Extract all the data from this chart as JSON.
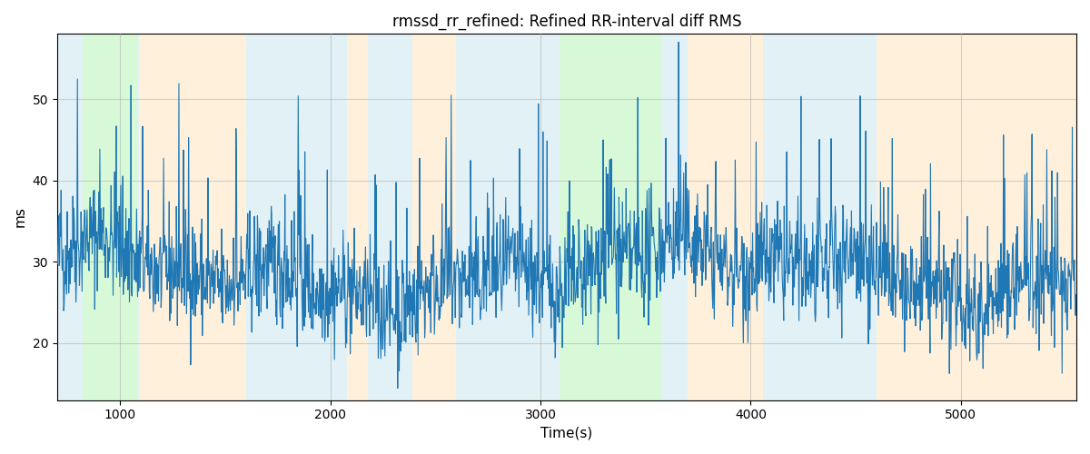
{
  "title": "rmssd_rr_refined: Refined RR-interval diff RMS",
  "xlabel": "Time(s)",
  "ylabel": "ms",
  "xlim": [
    700,
    5550
  ],
  "ylim": [
    13,
    58
  ],
  "yticks": [
    20,
    30,
    40,
    50
  ],
  "xticks": [
    1000,
    2000,
    3000,
    4000,
    5000
  ],
  "seed": 42,
  "bg_regions": [
    {
      "xstart": 700,
      "xend": 820,
      "color": "#add8e6"
    },
    {
      "xstart": 820,
      "xend": 1080,
      "color": "#90ee90"
    },
    {
      "xstart": 1080,
      "xend": 1090,
      "color": "#add8e6"
    },
    {
      "xstart": 1090,
      "xend": 1600,
      "color": "#ffd59b"
    },
    {
      "xstart": 1600,
      "xend": 2080,
      "color": "#add8e6"
    },
    {
      "xstart": 2080,
      "xend": 2180,
      "color": "#ffd59b"
    },
    {
      "xstart": 2180,
      "xend": 2390,
      "color": "#add8e6"
    },
    {
      "xstart": 2390,
      "xend": 2600,
      "color": "#ffd59b"
    },
    {
      "xstart": 2600,
      "xend": 2720,
      "color": "#add8e6"
    },
    {
      "xstart": 2720,
      "xend": 3030,
      "color": "#add8e6"
    },
    {
      "xstart": 3030,
      "xend": 3090,
      "color": "#add8e6"
    },
    {
      "xstart": 3090,
      "xend": 3580,
      "color": "#90ee90"
    },
    {
      "xstart": 3580,
      "xend": 3700,
      "color": "#add8e6"
    },
    {
      "xstart": 3700,
      "xend": 4060,
      "color": "#ffd59b"
    },
    {
      "xstart": 4060,
      "xend": 4600,
      "color": "#add8e6"
    },
    {
      "xstart": 4600,
      "xend": 5550,
      "color": "#ffd59b"
    }
  ],
  "line_color": "#1f77b4",
  "line_width": 0.8,
  "grid_color": "#aaaaaa",
  "grid_alpha": 0.5,
  "bg_alpha": 0.35,
  "n_points": 2000
}
